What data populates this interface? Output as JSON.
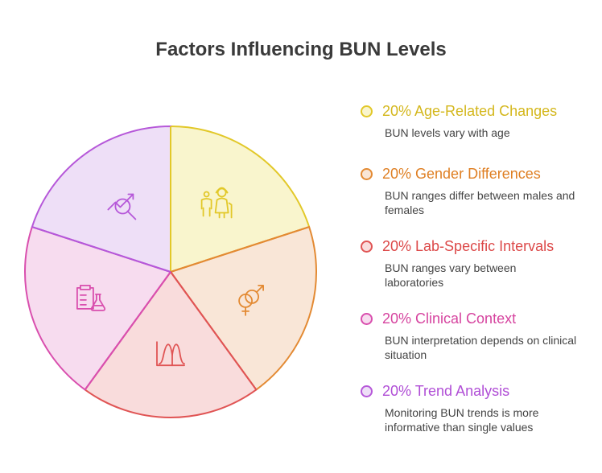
{
  "title": "Factors Influencing BUN Levels",
  "chart_data": {
    "type": "pie",
    "title": "Factors Influencing BUN Levels",
    "slices": [
      {
        "label": "Age-Related Changes",
        "percent_label": "20%",
        "value": 20,
        "description": "BUN levels vary with age",
        "fill": "#f9f5cd",
        "stroke": "#e2c829",
        "text_color": "#d4b71c",
        "icon": "elderly-family-icon"
      },
      {
        "label": "Gender Differences",
        "percent_label": "20%",
        "value": 20,
        "description": "BUN ranges differ between males and females",
        "fill": "#f9e6d7",
        "stroke": "#e38a33",
        "text_color": "#df7f23",
        "icon": "gender-symbols-icon"
      },
      {
        "label": "Lab-Specific Intervals",
        "percent_label": "20%",
        "value": 20,
        "description": "BUN ranges vary between laboratories",
        "fill": "#f9dcdc",
        "stroke": "#e05454",
        "text_color": "#dc4848",
        "icon": "distribution-curve-icon"
      },
      {
        "label": "Clinical Context",
        "percent_label": "20%",
        "value": 20,
        "description": "BUN interpretation depends on clinical situation",
        "fill": "#f7dcef",
        "stroke": "#d94fae",
        "text_color": "#d6449f",
        "icon": "clipboard-flask-icon"
      },
      {
        "label": "Trend Analysis",
        "percent_label": "20%",
        "value": 20,
        "description": "Monitoring BUN trends is more informative than single values",
        "fill": "#eedff7",
        "stroke": "#b658d9",
        "text_color": "#b04ed6",
        "icon": "trend-magnifier-icon"
      }
    ]
  },
  "legend": [
    {
      "heading": "20% Age-Related Changes",
      "description": "BUN levels vary with age",
      "dot_fill": "#f9f5cd",
      "color": "#e2c829",
      "text_color": "#d4b71c"
    },
    {
      "heading": "20% Gender Differences",
      "description": "BUN ranges differ between males and females",
      "dot_fill": "#f9e6d7",
      "color": "#e38a33",
      "text_color": "#df7f23"
    },
    {
      "heading": "20% Lab-Specific Intervals",
      "description": "BUN ranges vary between laboratories",
      "dot_fill": "#f9dcdc",
      "color": "#e05454",
      "text_color": "#dc4848"
    },
    {
      "heading": "20% Clinical Context",
      "description": "BUN interpretation depends on clinical situation",
      "dot_fill": "#f7dcef",
      "color": "#d94fae",
      "text_color": "#d6449f"
    },
    {
      "heading": "20% Trend Analysis",
      "description": "Monitoring BUN trends is more informative than single values",
      "dot_fill": "#eedff7",
      "color": "#b658d9",
      "text_color": "#b04ed6"
    }
  ]
}
